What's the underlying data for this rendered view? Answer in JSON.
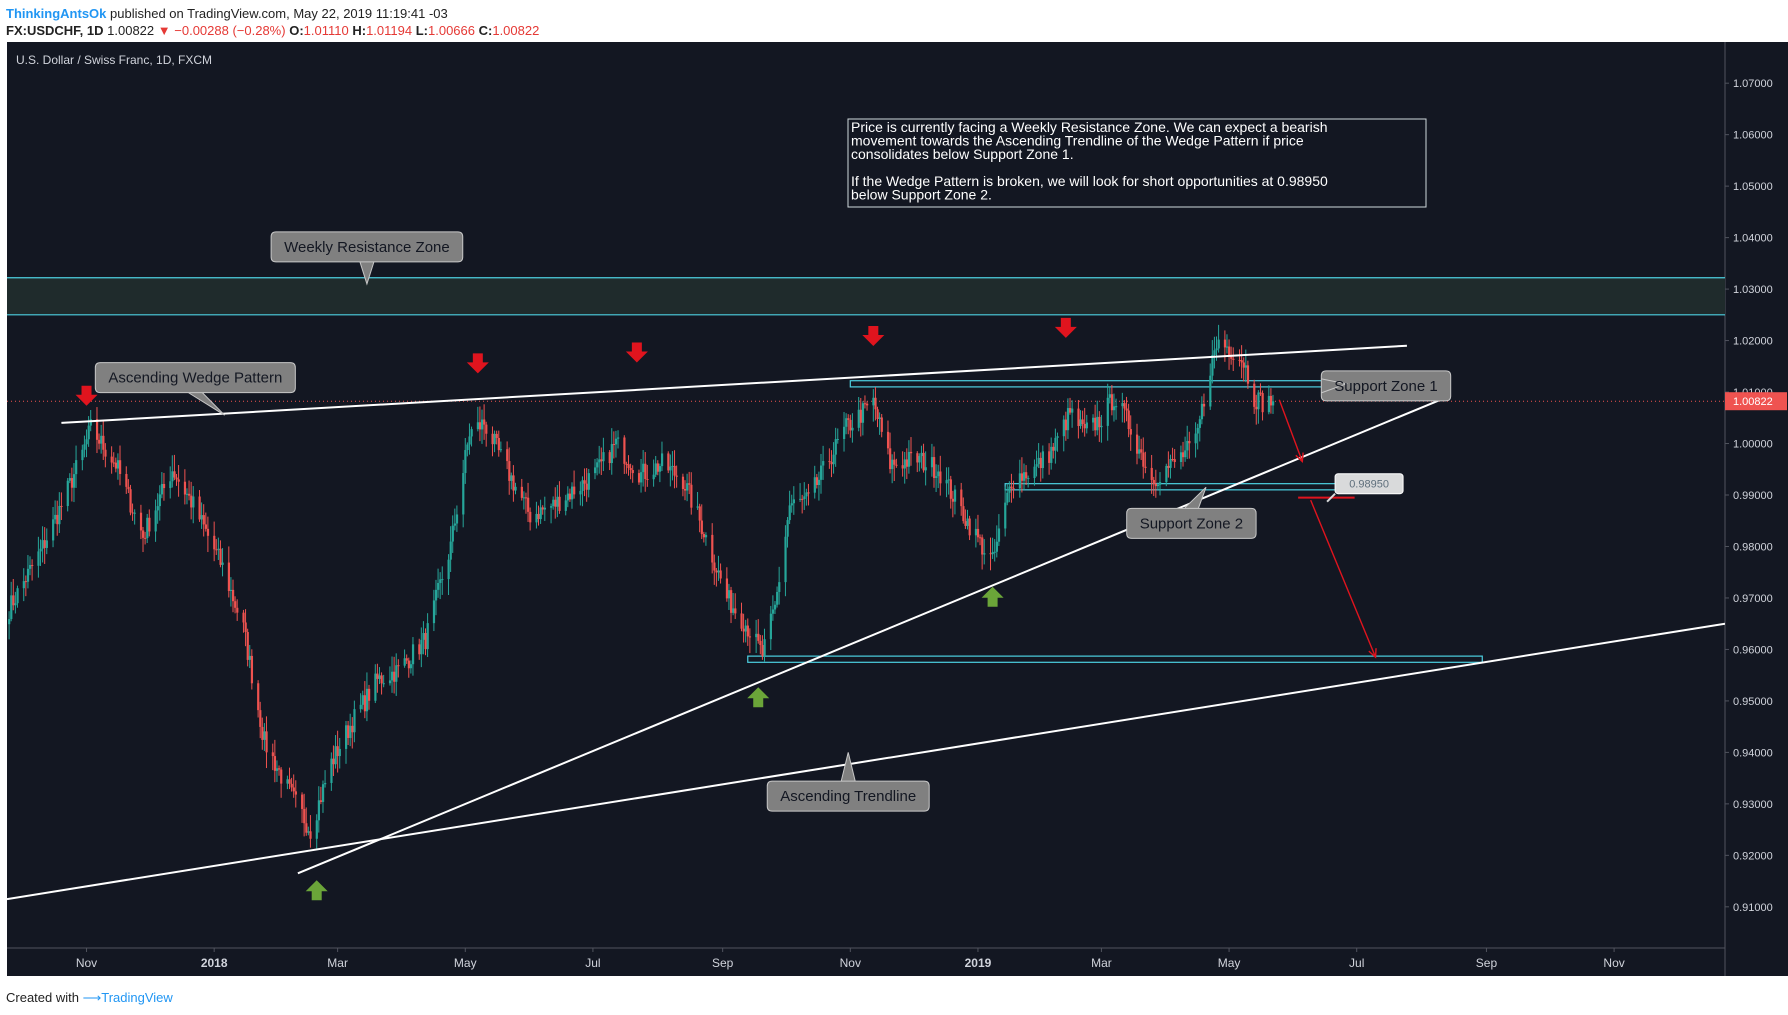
{
  "header": {
    "author": "ThinkingAntsOk",
    "published": "published on TradingView.com, May 22, 2019 11:19:41 -03",
    "symbol": "FX:USDCHF, 1D",
    "last": "1.00822",
    "change": "−0.00288 (−0.28%)",
    "o_label": "O:",
    "o": "1.01110",
    "h_label": "H:",
    "h": "1.01194",
    "l_label": "L:",
    "l": "1.00666",
    "c_label": "C:",
    "c": "1.00822"
  },
  "footer": {
    "created": "Created with",
    "brand": "TradingView"
  },
  "colors": {
    "bg": "#131722",
    "up": "#26a69a",
    "down": "#ef5350",
    "zone": "#4dd0e1",
    "arrow_down": "#e0141e",
    "arrow_up": "#6ba539",
    "note_border": "#cfd8dc"
  },
  "chart_data": {
    "type": "candlestick",
    "title": "U.S. Dollar / Swiss Franc, 1D, FXCM",
    "ylim": [
      0.902,
      1.078
    ],
    "xlim": [
      "2017-09-24",
      "2019-12-24"
    ],
    "y_ticks": [
      "0.91000",
      "0.92000",
      "0.93000",
      "0.94000",
      "0.95000",
      "0.96000",
      "0.97000",
      "0.98000",
      "0.99000",
      "1.00000",
      "1.01000",
      "1.02000",
      "1.03000",
      "1.04000",
      "1.05000",
      "1.06000",
      "1.07000"
    ],
    "x_ticks": [
      {
        "label": "Nov",
        "date": "2017-11-01"
      },
      {
        "label": "2018",
        "date": "2018-01-01"
      },
      {
        "label": "Mar",
        "date": "2018-03-01"
      },
      {
        "label": "May",
        "date": "2018-05-01"
      },
      {
        "label": "Jul",
        "date": "2018-07-01"
      },
      {
        "label": "Sep",
        "date": "2018-09-01"
      },
      {
        "label": "Nov",
        "date": "2018-11-01"
      },
      {
        "label": "2019",
        "date": "2019-01-01"
      },
      {
        "label": "Mar",
        "date": "2019-03-01"
      },
      {
        "label": "May",
        "date": "2019-05-01"
      },
      {
        "label": "Jul",
        "date": "2019-07-01"
      },
      {
        "label": "Sep",
        "date": "2019-09-01"
      },
      {
        "label": "Nov",
        "date": "2019-11-01"
      }
    ],
    "price_key_points": [
      [
        "2017-09-25",
        0.968
      ],
      [
        "2017-10-10",
        0.979
      ],
      [
        "2017-10-20",
        0.988
      ],
      [
        "2017-10-30",
        0.998
      ],
      [
        "2017-11-03",
        1.003
      ],
      [
        "2017-11-15",
        0.996
      ],
      [
        "2017-11-28",
        0.982
      ],
      [
        "2017-12-12",
        0.995
      ],
      [
        "2017-12-22",
        0.988
      ],
      [
        "2018-01-05",
        0.976
      ],
      [
        "2018-01-15",
        0.964
      ],
      [
        "2018-01-25",
        0.942
      ],
      [
        "2018-02-05",
        0.933
      ],
      [
        "2018-02-16",
        0.925
      ],
      [
        "2018-02-26",
        0.938
      ],
      [
        "2018-03-08",
        0.946
      ],
      [
        "2018-03-20",
        0.954
      ],
      [
        "2018-03-30",
        0.956
      ],
      [
        "2018-04-12",
        0.962
      ],
      [
        "2018-04-24",
        0.98
      ],
      [
        "2018-05-03",
        1.002
      ],
      [
        "2018-05-10",
        1.004
      ],
      [
        "2018-05-22",
        0.994
      ],
      [
        "2018-06-01",
        0.986
      ],
      [
        "2018-06-12",
        0.988
      ],
      [
        "2018-06-22",
        0.991
      ],
      [
        "2018-07-02",
        0.994
      ],
      [
        "2018-07-12",
        1.0
      ],
      [
        "2018-07-24",
        0.994
      ],
      [
        "2018-08-03",
        0.996
      ],
      [
        "2018-08-13",
        0.993
      ],
      [
        "2018-08-23",
        0.983
      ],
      [
        "2018-09-03",
        0.97
      ],
      [
        "2018-09-12",
        0.965
      ],
      [
        "2018-09-20",
        0.959
      ],
      [
        "2018-09-26",
        0.968
      ],
      [
        "2018-10-03",
        0.988
      ],
      [
        "2018-10-12",
        0.989
      ],
      [
        "2018-10-22",
        0.997
      ],
      [
        "2018-10-30",
        1.003
      ],
      [
        "2018-11-12",
        1.008
      ],
      [
        "2018-11-20",
        0.996
      ],
      [
        "2018-12-03",
        0.997
      ],
      [
        "2018-12-13",
        0.995
      ],
      [
        "2018-12-24",
        0.987
      ],
      [
        "2019-01-03",
        0.98
      ],
      [
        "2019-01-08",
        0.977
      ],
      [
        "2019-01-17",
        0.993
      ],
      [
        "2019-01-28",
        0.995
      ],
      [
        "2019-02-06",
        0.999
      ],
      [
        "2019-02-14",
        1.006
      ],
      [
        "2019-02-21",
        1.002
      ],
      [
        "2019-03-01",
        1.005
      ],
      [
        "2019-03-07",
        1.009
      ],
      [
        "2019-03-15",
        1.003
      ],
      [
        "2019-03-25",
        0.993
      ],
      [
        "2019-04-04",
        0.996
      ],
      [
        "2019-04-15",
        1.0
      ],
      [
        "2019-04-22",
        1.015
      ],
      [
        "2019-04-26",
        1.02
      ],
      [
        "2019-05-03",
        1.018
      ],
      [
        "2019-05-08",
        1.016
      ],
      [
        "2019-05-13",
        1.009
      ],
      [
        "2019-05-17",
        1.008
      ],
      [
        "2019-05-22",
        1.0082
      ]
    ],
    "series": [
      {
        "type": "hline",
        "name": "Weekly Resistance Zone top",
        "value": 1.0322
      },
      {
        "type": "hline",
        "name": "Weekly Resistance Zone bottom",
        "value": 1.025
      },
      {
        "type": "line",
        "name": "Upper wedge line",
        "points": [
          [
            "2017-10-20",
            1.004
          ],
          [
            "2019-07-25",
            1.019
          ]
        ]
      },
      {
        "type": "line",
        "name": "Lower wedge line",
        "points": [
          [
            "2018-02-10",
            0.9165
          ],
          [
            "2019-08-10",
            1.0085
          ]
        ]
      },
      {
        "type": "line",
        "name": "Ascending Trendline",
        "points": [
          [
            "2017-09-24",
            0.9115
          ],
          [
            "2019-12-24",
            0.965
          ]
        ]
      },
      {
        "type": "zone",
        "name": "Support Zone 1",
        "x": [
          "2018-11-01",
          "2019-06-24"
        ],
        "y": [
          1.011,
          1.0122
        ]
      },
      {
        "type": "zone",
        "name": "Support Zone 2",
        "x": [
          "2019-01-14",
          "2019-07-10"
        ],
        "y": [
          0.991,
          0.9922
        ]
      },
      {
        "type": "zone",
        "name": "Target zone",
        "x": [
          "2018-09-13",
          "2019-08-30"
        ],
        "y": [
          0.9575,
          0.9587
        ]
      },
      {
        "type": "projection",
        "name": "Bearish path 1",
        "points": [
          [
            "2019-05-25",
            1.0085
          ],
          [
            "2019-06-05",
            0.9965
          ]
        ]
      },
      {
        "type": "hline_segment",
        "name": "Entry level",
        "x": [
          "2019-06-03",
          "2019-06-30"
        ],
        "value": 0.9895
      },
      {
        "type": "projection",
        "name": "Bearish path 2",
        "points": [
          [
            "2019-06-09",
            0.989
          ],
          [
            "2019-07-10",
            0.9585
          ]
        ]
      }
    ],
    "annotations": [
      {
        "text": "Weekly Resistance Zone",
        "date": "2018-03-15",
        "price": 1.0382,
        "pointer": [
          "2018-03-15",
          1.031
        ]
      },
      {
        "text": "Ascending Wedge Pattern",
        "date": "2017-12-23",
        "price": 1.0128,
        "pointer": [
          "2018-01-06",
          1.0055
        ]
      },
      {
        "text": "Support Zone 1",
        "date": "2019-07-15",
        "price": 1.0112,
        "pointer": [
          "2019-06-26",
          1.0116
        ]
      },
      {
        "text": "Support Zone  2",
        "date": "2019-04-13",
        "price": 0.9845,
        "pointer": [
          "2019-04-20",
          0.9915
        ]
      },
      {
        "text": "Ascending Trendline",
        "date": "2018-10-31",
        "price": 0.9315,
        "pointer": [
          "2018-10-31",
          0.94
        ]
      }
    ],
    "price_tag": {
      "text": "0.98950",
      "date": "2019-07-05",
      "price": 0.992
    },
    "last_price_label": "1.00822",
    "last_price": 1.00822,
    "clipped_label": "1.01000",
    "down_arrows": [
      [
        "2017-11-01",
        1.0085
      ],
      [
        "2018-05-07",
        1.0148
      ],
      [
        "2018-07-22",
        1.0169
      ],
      [
        "2018-11-12",
        1.0201
      ],
      [
        "2019-02-12",
        1.0217
      ]
    ],
    "up_arrows": [
      [
        "2018-02-19",
        0.914
      ],
      [
        "2018-09-18",
        0.9515
      ],
      [
        "2019-01-08",
        0.971
      ]
    ],
    "note": {
      "lines": [
        "Price is currently facing a Weekly Resistance Zone. We can expect a bearish",
        "movement towards the Ascending Trendline of the Wedge Pattern if price",
        "consolidates below Support Zone 1.",
        "",
        "If the Wedge Pattern is broken, we will look for short opportunities at 0.98950",
        "below Support Zone 2."
      ]
    }
  }
}
